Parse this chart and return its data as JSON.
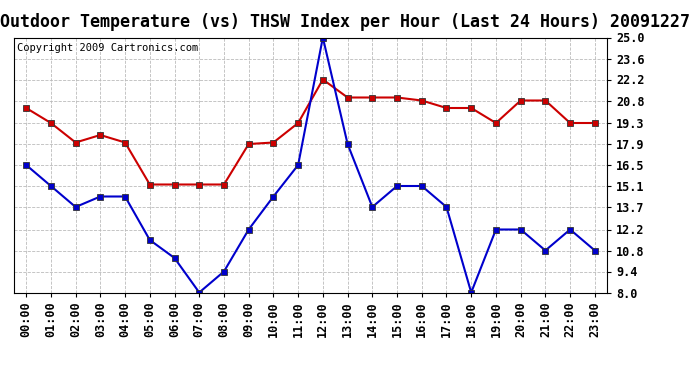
{
  "title": "Outdoor Temperature (vs) THSW Index per Hour (Last 24 Hours) 20091227",
  "copyright": "Copyright 2009 Cartronics.com",
  "hours": [
    "00:00",
    "01:00",
    "02:00",
    "03:00",
    "04:00",
    "05:00",
    "06:00",
    "07:00",
    "08:00",
    "09:00",
    "10:00",
    "11:00",
    "12:00",
    "13:00",
    "14:00",
    "15:00",
    "16:00",
    "17:00",
    "18:00",
    "19:00",
    "20:00",
    "21:00",
    "22:00",
    "23:00"
  ],
  "red_data": [
    20.3,
    19.3,
    18.0,
    18.5,
    18.0,
    15.2,
    15.2,
    15.2,
    15.2,
    17.9,
    18.0,
    19.3,
    22.2,
    21.0,
    21.0,
    21.0,
    20.8,
    20.3,
    20.3,
    19.3,
    20.8,
    20.8,
    19.3,
    19.3
  ],
  "blue_data": [
    16.5,
    15.1,
    13.7,
    14.4,
    14.4,
    11.5,
    10.3,
    8.0,
    9.4,
    12.2,
    14.4,
    16.5,
    25.0,
    17.9,
    13.7,
    15.1,
    15.1,
    13.7,
    8.0,
    12.2,
    12.2,
    10.8,
    12.2,
    10.8
  ],
  "ylim_min": 8.0,
  "ylim_max": 25.0,
  "yticks": [
    8.0,
    9.4,
    10.8,
    12.2,
    13.7,
    15.1,
    16.5,
    17.9,
    19.3,
    20.8,
    22.2,
    23.6,
    25.0
  ],
  "red_color": "#cc0000",
  "blue_color": "#0000cc",
  "bg_color": "#ffffff",
  "grid_color": "#bbbbbb",
  "title_fontsize": 12,
  "copyright_fontsize": 7.5,
  "tick_fontsize": 8.5,
  "marker_size": 4
}
